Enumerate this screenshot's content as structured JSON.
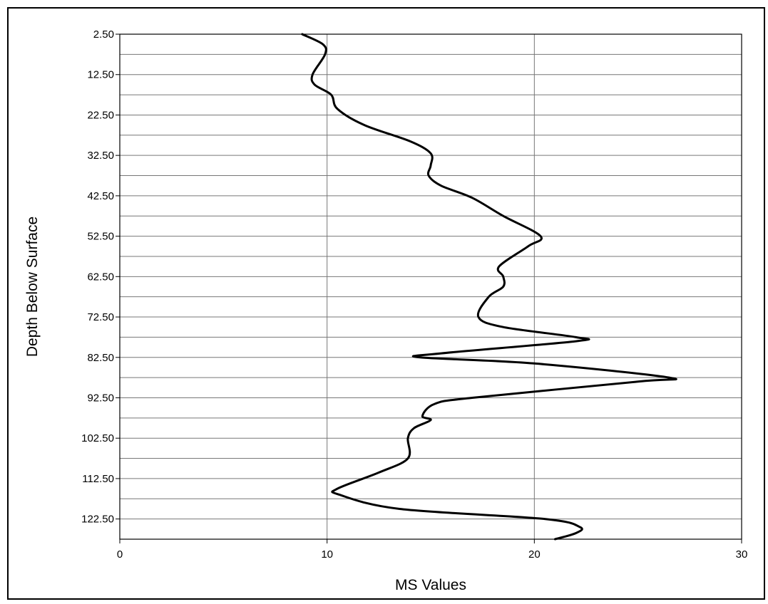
{
  "chart_data": {
    "type": "line",
    "xlabel": "MS Values",
    "ylabel": "Depth Below Surface",
    "xlim": [
      0,
      30
    ],
    "ylim": [
      2.5,
      127.5
    ],
    "x_ticks": [
      0,
      10,
      20,
      30
    ],
    "y_tick_labels": [
      "2.50",
      "12.50",
      "22.50",
      "32.50",
      "42.50",
      "52.50",
      "62.50",
      "72.50",
      "82.50",
      "92.50",
      "102.50",
      "112.50",
      "122.50"
    ],
    "y_ticks": [
      2.5,
      12.5,
      22.5,
      32.5,
      42.5,
      52.5,
      62.5,
      72.5,
      82.5,
      92.5,
      102.5,
      112.5,
      122.5
    ],
    "y_inverted": true,
    "grid": true,
    "series": [
      {
        "x": [
          8.8,
          9.8,
          9.9,
          9.3,
          9.4,
          10.2,
          10.5,
          11.8,
          14.0,
          15.0,
          15.0,
          14.9,
          15.5,
          17.0,
          18.5,
          20.3,
          19.7,
          18.3,
          18.5,
          18.5,
          17.8,
          17.3,
          18.5,
          22.0,
          22.0,
          15.5,
          14.5,
          20.0,
          26.5,
          25.0,
          17.0,
          15.2,
          14.6,
          15.0,
          14.2,
          13.9,
          13.9,
          12.5,
          10.5,
          10.6,
          13.5,
          20.5,
          22.2,
          22.0,
          21.0
        ],
        "y": [
          2.5,
          5.0,
          7.5,
          12.5,
          15.0,
          17.5,
          21.0,
          25.0,
          29.0,
          32.0,
          35.0,
          37.5,
          40.0,
          43.0,
          47.5,
          52.5,
          55.0,
          60.0,
          62.5,
          65.0,
          67.5,
          72.5,
          75.0,
          77.5,
          78.5,
          81.5,
          82.5,
          84.0,
          87.5,
          88.5,
          92.5,
          94.0,
          97.0,
          98.0,
          100.0,
          102.5,
          107.5,
          111.0,
          115.0,
          116.5,
          120.0,
          122.5,
          124.5,
          126.0,
          127.5
        ]
      }
    ]
  }
}
